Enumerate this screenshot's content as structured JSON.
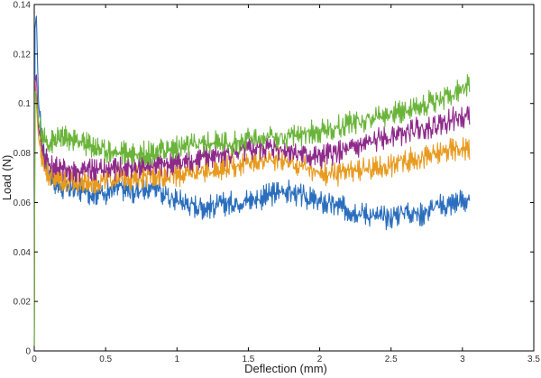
{
  "chart_data": {
    "type": "line",
    "title": "",
    "xlabel": "Deflection (mm)",
    "ylabel": "Load (N)",
    "xlim": [
      0,
      3.5
    ],
    "ylim": [
      0,
      0.14
    ],
    "x_ticks": [
      0,
      0.5,
      1,
      1.5,
      2,
      2.5,
      3,
      3.5
    ],
    "x_tick_labels": [
      "0",
      "0.5",
      "1",
      "1.5",
      "2",
      "2.5",
      "3",
      "3.5"
    ],
    "y_ticks": [
      0,
      0.02,
      0.04,
      0.06,
      0.08,
      0.1,
      0.12,
      0.14
    ],
    "y_tick_labels": [
      "0",
      "0.02",
      "0.04",
      "0.06",
      "0.08",
      "0.1",
      "0.12",
      "0.14"
    ],
    "grid": false,
    "legend": "none",
    "series": [
      {
        "color": "#2a6ebd",
        "x": [
          0,
          0.005,
          0.015,
          0.03,
          0.06,
          0.1,
          0.15,
          0.2,
          0.3,
          0.4,
          0.5,
          0.6,
          0.7,
          0.8,
          0.85,
          0.9,
          1.0,
          1.1,
          1.2,
          1.3,
          1.4,
          1.5,
          1.6,
          1.7,
          1.75,
          1.8,
          1.9,
          2.0,
          2.1,
          2.2,
          2.3,
          2.4,
          2.5,
          2.6,
          2.7,
          2.8,
          2.9,
          3.0,
          3.05
        ],
        "y": [
          0.002,
          0.13,
          0.136,
          0.1,
          0.082,
          0.073,
          0.068,
          0.066,
          0.065,
          0.064,
          0.064,
          0.066,
          0.064,
          0.066,
          0.067,
          0.063,
          0.061,
          0.059,
          0.058,
          0.059,
          0.06,
          0.061,
          0.062,
          0.064,
          0.065,
          0.064,
          0.062,
          0.06,
          0.059,
          0.057,
          0.056,
          0.054,
          0.054,
          0.057,
          0.055,
          0.058,
          0.059,
          0.061,
          0.06
        ]
      },
      {
        "color": "#e89a1f",
        "x": [
          0,
          0.005,
          0.015,
          0.03,
          0.06,
          0.1,
          0.15,
          0.2,
          0.3,
          0.4,
          0.5,
          0.6,
          0.7,
          0.8,
          0.9,
          1.0,
          1.1,
          1.2,
          1.3,
          1.4,
          1.5,
          1.6,
          1.7,
          1.8,
          1.9,
          2.0,
          2.1,
          2.2,
          2.3,
          2.4,
          2.5,
          2.6,
          2.7,
          2.8,
          2.9,
          3.0,
          3.05
        ],
        "y": [
          0.002,
          0.11,
          0.1,
          0.086,
          0.076,
          0.072,
          0.07,
          0.069,
          0.068,
          0.068,
          0.069,
          0.07,
          0.07,
          0.071,
          0.071,
          0.071,
          0.072,
          0.073,
          0.074,
          0.075,
          0.076,
          0.077,
          0.078,
          0.076,
          0.074,
          0.072,
          0.071,
          0.072,
          0.073,
          0.074,
          0.075,
          0.077,
          0.078,
          0.079,
          0.081,
          0.082,
          0.082
        ]
      },
      {
        "color": "#8e2a8a",
        "x": [
          0,
          0.005,
          0.015,
          0.03,
          0.06,
          0.1,
          0.15,
          0.2,
          0.3,
          0.4,
          0.5,
          0.6,
          0.7,
          0.8,
          0.9,
          1.0,
          1.1,
          1.2,
          1.3,
          1.4,
          1.5,
          1.6,
          1.7,
          1.8,
          1.9,
          2.0,
          2.1,
          2.2,
          2.3,
          2.4,
          2.5,
          2.6,
          2.7,
          2.8,
          2.9,
          3.0,
          3.05
        ],
        "y": [
          0.002,
          0.108,
          0.112,
          0.09,
          0.08,
          0.076,
          0.074,
          0.073,
          0.073,
          0.073,
          0.073,
          0.074,
          0.074,
          0.075,
          0.075,
          0.076,
          0.077,
          0.078,
          0.079,
          0.08,
          0.081,
          0.082,
          0.082,
          0.081,
          0.079,
          0.078,
          0.08,
          0.081,
          0.083,
          0.085,
          0.087,
          0.088,
          0.09,
          0.091,
          0.093,
          0.095,
          0.095
        ]
      },
      {
        "color": "#6ab43a",
        "x": [
          0,
          0.005,
          0.015,
          0.03,
          0.06,
          0.1,
          0.15,
          0.2,
          0.3,
          0.4,
          0.5,
          0.6,
          0.7,
          0.8,
          0.9,
          1.0,
          1.1,
          1.2,
          1.3,
          1.4,
          1.5,
          1.6,
          1.7,
          1.8,
          1.9,
          2.0,
          2.1,
          2.2,
          2.3,
          2.4,
          2.5,
          2.6,
          2.7,
          2.8,
          2.9,
          3.0,
          3.05
        ],
        "y": [
          0.002,
          0.105,
          0.103,
          0.092,
          0.086,
          0.084,
          0.085,
          0.086,
          0.085,
          0.083,
          0.081,
          0.08,
          0.08,
          0.08,
          0.081,
          0.082,
          0.083,
          0.084,
          0.084,
          0.084,
          0.085,
          0.086,
          0.086,
          0.087,
          0.088,
          0.089,
          0.09,
          0.092,
          0.093,
          0.095,
          0.096,
          0.097,
          0.099,
          0.101,
          0.103,
          0.106,
          0.107
        ]
      }
    ]
  }
}
